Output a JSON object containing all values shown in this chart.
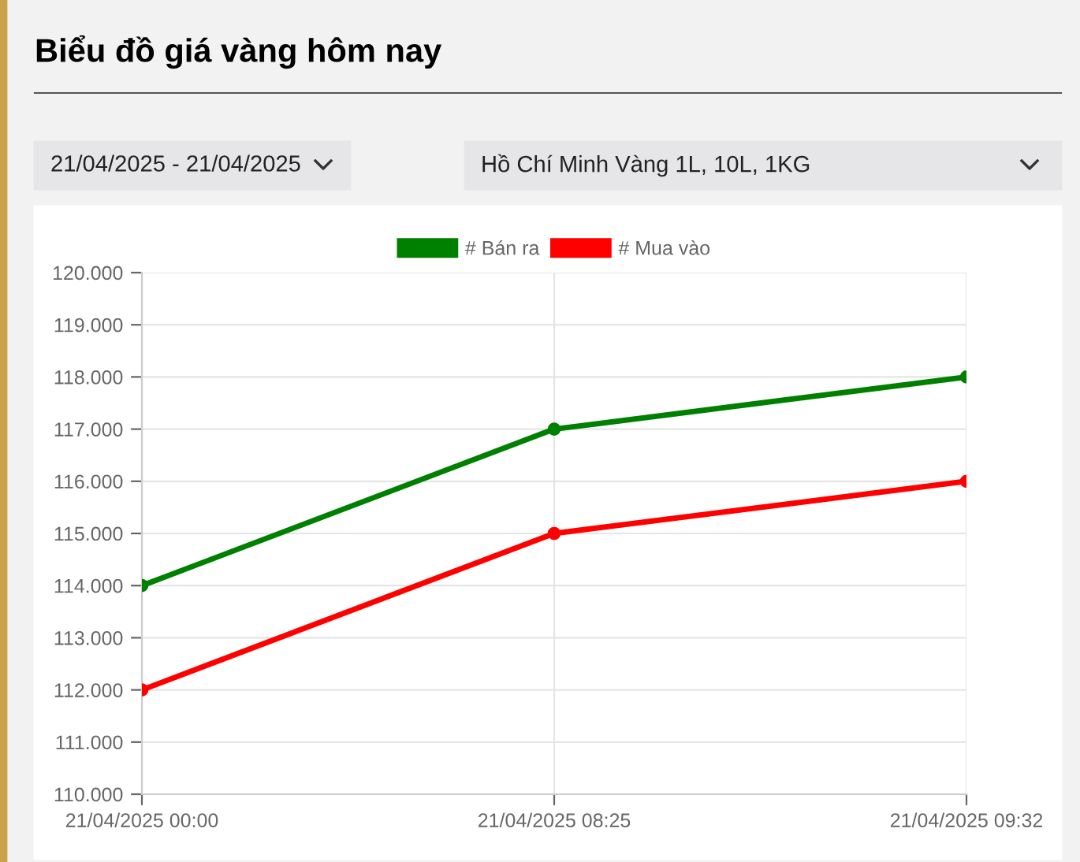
{
  "chart_data": {
    "type": "line",
    "title": "Biểu đồ giá vàng hôm nay",
    "annotations": [
      "21/04/2025 - 21/04/2025",
      "Hồ Chí Minh Vàng 1L, 10L, 1KG"
    ],
    "categories": [
      "21/04/2025 00:00",
      "21/04/2025 08:25",
      "21/04/2025 09:32"
    ],
    "series": [
      {
        "name": "# Bán ra",
        "color": "#008000",
        "values": [
          114000,
          117000,
          118000
        ]
      },
      {
        "name": "# Mua vào",
        "color": "#ff0000",
        "values": [
          112000,
          115000,
          116000
        ]
      }
    ],
    "ylim": [
      110000,
      120000
    ],
    "yticks": [
      {
        "value": 110000,
        "label": "110.000"
      },
      {
        "value": 111000,
        "label": "111.000"
      },
      {
        "value": 112000,
        "label": "112.000"
      },
      {
        "value": 113000,
        "label": "113.000"
      },
      {
        "value": 114000,
        "label": "114.000"
      },
      {
        "value": 115000,
        "label": "115.000"
      },
      {
        "value": 116000,
        "label": "116.000"
      },
      {
        "value": 117000,
        "label": "117.000"
      },
      {
        "value": 118000,
        "label": "118.000"
      },
      {
        "value": 119000,
        "label": "119.000"
      },
      {
        "value": 120000,
        "label": "120.000"
      }
    ],
    "grid": true,
    "legend": "top",
    "marker": "circle",
    "line_style": "solid"
  }
}
